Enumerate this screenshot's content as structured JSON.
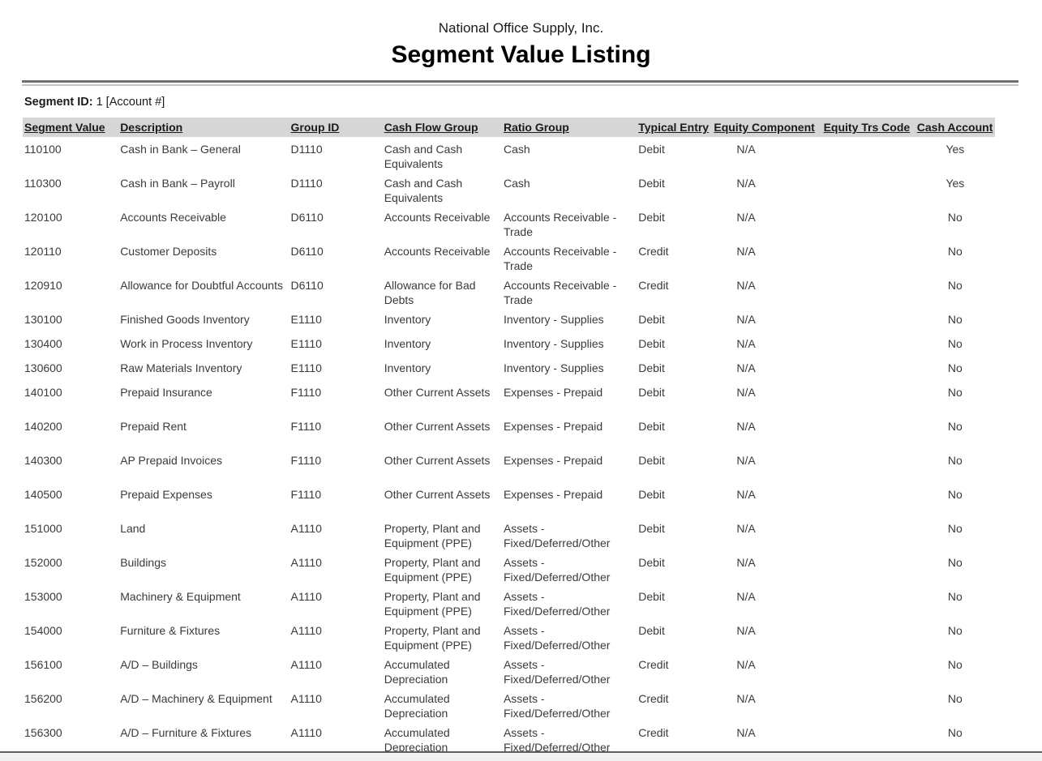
{
  "report": {
    "company": "National Office Supply, Inc.",
    "title": "Segment Value Listing",
    "segment_id_label": "Segment ID:",
    "segment_id_value": "1 [Account #]"
  },
  "table": {
    "columns": [
      {
        "key": "segment-value",
        "label": "Segment Value"
      },
      {
        "key": "description",
        "label": "Description"
      },
      {
        "key": "group-id",
        "label": "Group ID"
      },
      {
        "key": "cash-flow-group",
        "label": "Cash Flow Group"
      },
      {
        "key": "ratio-group",
        "label": "Ratio Group"
      },
      {
        "key": "typical-entry",
        "label": "Typical Entry"
      },
      {
        "key": "equity-component",
        "label": "Equity Component"
      },
      {
        "key": "equity-trs-code",
        "label": "Equity Trs Code"
      },
      {
        "key": "cash-account",
        "label": "Cash Account"
      }
    ],
    "rows": [
      [
        "110100",
        "Cash in Bank – General",
        "D1110",
        "Cash and Cash Equivalents",
        "Cash",
        "Debit",
        "N/A",
        "",
        "Yes"
      ],
      [
        "110300",
        "Cash in Bank – Payroll",
        "D1110",
        "Cash and Cash Equivalents",
        "Cash",
        "Debit",
        "N/A",
        "",
        "Yes"
      ],
      [
        "120100",
        "Accounts Receivable",
        "D6110",
        "Accounts Receivable",
        "Accounts Receivable - Trade",
        "Debit",
        "N/A",
        "",
        "No"
      ],
      [
        "120110",
        "Customer Deposits",
        "D6110",
        "Accounts Receivable",
        "Accounts Receivable - Trade",
        "Credit",
        "N/A",
        "",
        "No"
      ],
      [
        "120910",
        "Allowance for Doubtful Accounts",
        "D6110",
        "Allowance for Bad Debts",
        "Accounts Receivable - Trade",
        "Credit",
        "N/A",
        "",
        "No"
      ],
      [
        "130100",
        "Finished Goods Inventory",
        "E1110",
        "Inventory",
        "Inventory - Supplies",
        "Debit",
        "N/A",
        "",
        "No"
      ],
      [
        "130400",
        "Work in Process Inventory",
        "E1110",
        "Inventory",
        "Inventory - Supplies",
        "Debit",
        "N/A",
        "",
        "No"
      ],
      [
        "130600",
        "Raw Materials Inventory",
        "E1110",
        "Inventory",
        "Inventory - Supplies",
        "Debit",
        "N/A",
        "",
        "No"
      ],
      [
        "140100",
        "Prepaid Insurance",
        "F1110",
        "Other Current Assets",
        "Expenses - Prepaid",
        "Debit",
        "N/A",
        "",
        "No"
      ],
      [
        "140200",
        "Prepaid Rent",
        "F1110",
        "Other Current Assets",
        "Expenses - Prepaid",
        "Debit",
        "N/A",
        "",
        "No"
      ],
      [
        "140300",
        "AP Prepaid Invoices",
        "F1110",
        "Other Current Assets",
        "Expenses - Prepaid",
        "Debit",
        "N/A",
        "",
        "No"
      ],
      [
        "140500",
        "Prepaid Expenses",
        "F1110",
        "Other Current Assets",
        "Expenses - Prepaid",
        "Debit",
        "N/A",
        "",
        "No"
      ],
      [
        "151000",
        "Land",
        "A1110",
        "Property, Plant and Equipment (PPE)",
        "Assets - Fixed/Deferred/Other",
        "Debit",
        "N/A",
        "",
        "No"
      ],
      [
        "152000",
        "Buildings",
        "A1110",
        "Property, Plant and Equipment (PPE)",
        "Assets - Fixed/Deferred/Other",
        "Debit",
        "N/A",
        "",
        "No"
      ],
      [
        "153000",
        "Machinery & Equipment",
        "A1110",
        "Property, Plant and Equipment (PPE)",
        "Assets - Fixed/Deferred/Other",
        "Debit",
        "N/A",
        "",
        "No"
      ],
      [
        "154000",
        "Furniture & Fixtures",
        "A1110",
        "Property, Plant and Equipment (PPE)",
        "Assets - Fixed/Deferred/Other",
        "Debit",
        "N/A",
        "",
        "No"
      ],
      [
        "156100",
        "A/D – Buildings",
        "A1110",
        "Accumulated Depreciation",
        "Assets - Fixed/Deferred/Other",
        "Credit",
        "N/A",
        "",
        "No"
      ],
      [
        "156200",
        "A/D – Machinery & Equipment",
        "A1110",
        "Accumulated Depreciation",
        "Assets - Fixed/Deferred/Other",
        "Credit",
        "N/A",
        "",
        "No"
      ],
      [
        "156300",
        "A/D – Furniture & Fixtures",
        "A1110",
        "Accumulated Depreciation",
        "Assets - Fixed/Deferred/Other",
        "Credit",
        "N/A",
        "",
        "No"
      ]
    ]
  },
  "colors": {
    "header_row_bg": "#d6d6d6",
    "heading_text": "#1a1a1a",
    "body_text": "#3a3a3a",
    "rule_dark": "#6e6e6e",
    "rule_light": "#c2c2c2",
    "page_edge_strip": "#f1f1f1"
  }
}
